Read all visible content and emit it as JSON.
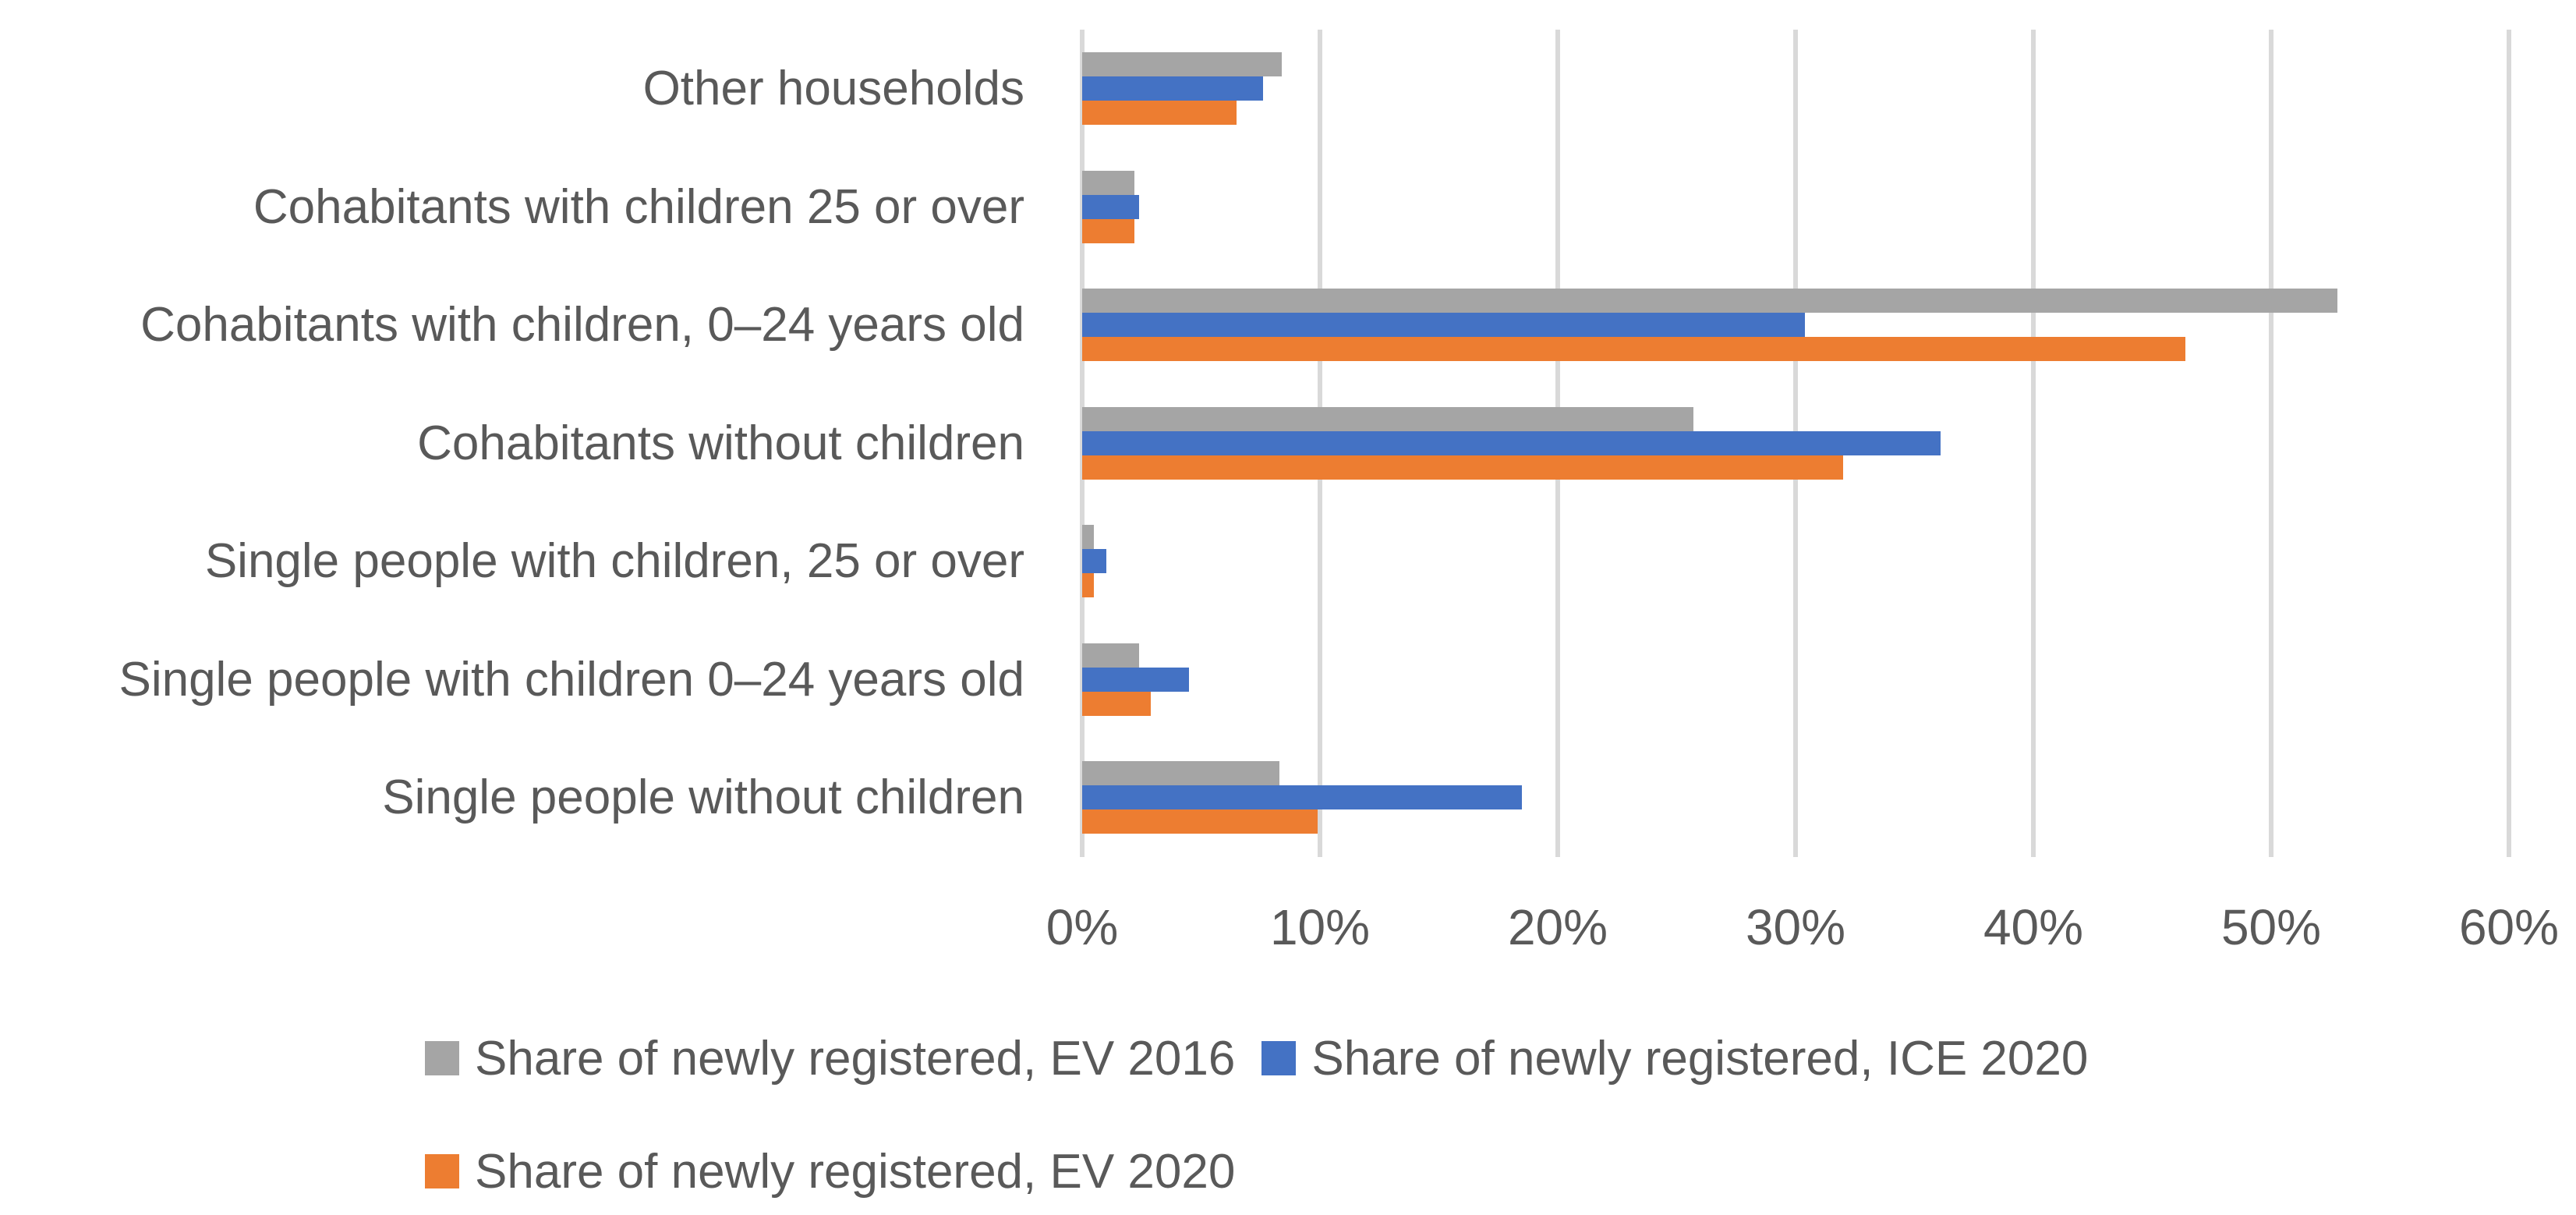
{
  "chart_data": {
    "type": "bar",
    "orientation": "horizontal",
    "title": "",
    "xlabel": "",
    "ylabel": "",
    "grid": true,
    "categories": [
      "Other households",
      "Cohabitants with children 25 or over",
      "Cohabitants with children, 0–24 years old",
      "Cohabitants without children",
      "Single people with children, 25 or over",
      "Single people with children 0–24 years old",
      "Single people without children"
    ],
    "series": [
      {
        "id": "ev-2016",
        "name": "Share of newly registered, EV 2016",
        "color": "#A5A5A5",
        "values": [
          8.4,
          2.2,
          52.8,
          25.7,
          0.5,
          2.4,
          8.3
        ]
      },
      {
        "id": "ice-2020",
        "name": "Share of newly registered, ICE 2020",
        "color": "#4472C4",
        "values": [
          7.6,
          2.4,
          30.4,
          36.1,
          1.0,
          4.5,
          18.5
        ]
      },
      {
        "id": "ev-2020",
        "name": "Share of newly registered, EV 2020",
        "color": "#ED7D31",
        "values": [
          6.5,
          2.2,
          46.4,
          32.0,
          0.5,
          2.9,
          9.9
        ]
      }
    ],
    "x_axis": {
      "min": 0,
      "max": 60,
      "tick_step": 10,
      "tick_labels": [
        "0%",
        "10%",
        "20%",
        "30%",
        "40%",
        "50%",
        "60%"
      ]
    },
    "legend": {
      "position": "bottom",
      "rows": [
        [
          0,
          1
        ],
        [
          2
        ]
      ]
    },
    "styles": {
      "text_color": "#595959",
      "gridline_color": "#D9D9D9",
      "background": "#FFFFFF"
    }
  }
}
